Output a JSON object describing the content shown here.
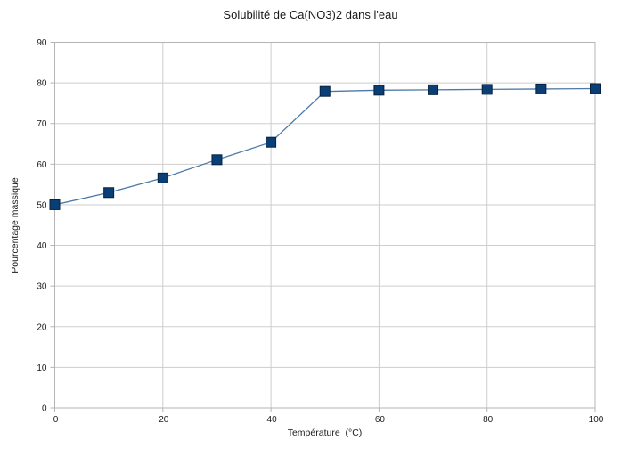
{
  "chart": {
    "title": "Solubilité de Ca(NO3)2 dans l'eau",
    "x_axis_title": "Température  (°C)",
    "y_axis_title": "Pourcentage massique"
  },
  "chart_data": {
    "type": "line",
    "title": "Solubilité de Ca(NO3)2 dans l'eau",
    "xlabel": "Température  (°C)",
    "ylabel": "Pourcentage massique",
    "x": [
      0,
      10,
      20,
      30,
      40,
      50,
      60,
      70,
      80,
      90,
      100
    ],
    "y": [
      50,
      53,
      56.6,
      61.1,
      65.4,
      77.9,
      78.2,
      78.3,
      78.4,
      78.5,
      78.6
    ],
    "xlim": [
      0,
      100
    ],
    "ylim": [
      0,
      90
    ],
    "x_ticks": [
      0,
      20,
      40,
      60,
      80,
      100
    ],
    "y_ticks": [
      0,
      10,
      20,
      30,
      40,
      50,
      60,
      70,
      80,
      90
    ],
    "grid": true,
    "legend": "none",
    "marker": "square",
    "marker_size": 11,
    "colors": {
      "line": "#4d79a8",
      "marker_fill": "#0a3e76",
      "marker_stroke": "#04223f",
      "grid": "#cdcdcd",
      "axis": "#b4b4b4",
      "text": "#1a1a1a",
      "background": "#ffffff"
    }
  }
}
